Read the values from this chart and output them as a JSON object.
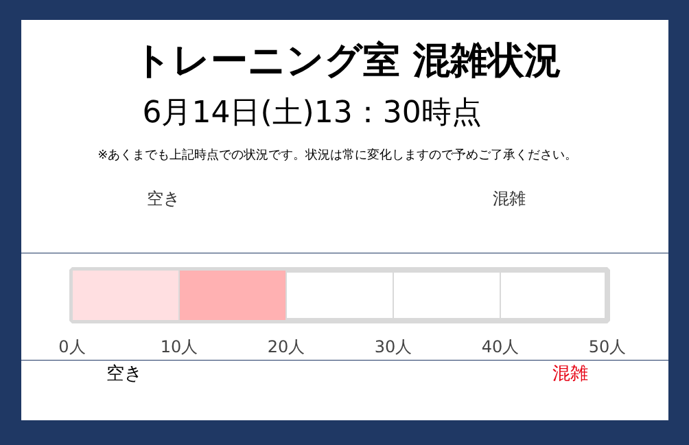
{
  "chart_data": {
    "type": "bar",
    "orientation": "horizontal",
    "stacked": true,
    "title": "トレーニング室 混雑状況",
    "subtitle": "6月14日(土)13：30時点",
    "categories": [
      null
    ],
    "series": [
      {
        "color": "#ffdfe1",
        "values": [
          10
        ]
      },
      {
        "color": "#ffb1b2",
        "values": [
          10
        ]
      }
    ],
    "xlim": [
      0,
      50
    ],
    "xticks": [
      {
        "value": 0,
        "label": "0人"
      },
      {
        "value": 10,
        "label": "10人"
      },
      {
        "value": 20,
        "label": "20人"
      },
      {
        "value": 30,
        "label": "30人"
      },
      {
        "value": 40,
        "label": "40人"
      },
      {
        "value": 50,
        "label": "50人"
      }
    ],
    "grid": "x",
    "annotations": [
      "※あくまでも上記時点での状況です。状況は常に変化しますので予めご了承ください。",
      "空き",
      "混雑",
      "空き",
      "混雑"
    ]
  }
}
